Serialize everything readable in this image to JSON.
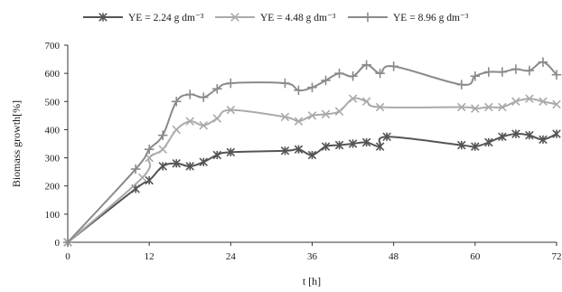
{
  "chart_data": {
    "type": "line",
    "xlabel": "t [h]",
    "ylabel": "Biomass growth[%]",
    "xlim": [
      0,
      72
    ],
    "ylim": [
      0,
      700
    ],
    "xticks": [
      0,
      12,
      24,
      36,
      48,
      60,
      72
    ],
    "yticks": [
      0,
      100,
      200,
      300,
      400,
      500,
      600,
      700
    ],
    "grid": false,
    "legend_position": "top-center",
    "series": [
      {
        "name": "YE = 2.24 g dm⁻³",
        "color": "#555555",
        "marker": "star",
        "x": [
          0,
          10,
          12,
          14,
          16,
          18,
          20,
          22,
          24,
          32,
          34,
          36,
          38,
          40,
          42,
          44,
          46,
          47,
          58,
          60,
          62,
          64,
          66,
          68,
          70,
          72
        ],
        "y": [
          0,
          190,
          220,
          270,
          280,
          270,
          285,
          310,
          320,
          325,
          330,
          310,
          340,
          345,
          350,
          355,
          340,
          375,
          345,
          340,
          355,
          375,
          385,
          380,
          365,
          385
        ]
      },
      {
        "name": "YE = 4.48 g dm⁻³",
        "color": "#aaaaaa",
        "marker": "x",
        "x": [
          0,
          11,
          12,
          14,
          16,
          18,
          20,
          22,
          24,
          32,
          34,
          36,
          38,
          40,
          42,
          44,
          46,
          58,
          60,
          62,
          64,
          66,
          68,
          70,
          72
        ],
        "y": [
          0,
          230,
          300,
          330,
          400,
          430,
          415,
          440,
          470,
          445,
          430,
          450,
          455,
          465,
          510,
          500,
          480,
          480,
          475,
          480,
          480,
          500,
          510,
          500,
          490
        ]
      },
      {
        "name": "YE = 8.96 g dm⁻³",
        "color": "#8a8a8a",
        "marker": "plus",
        "x": [
          0,
          10,
          12,
          14,
          16,
          18,
          20,
          22,
          24,
          32,
          34,
          36,
          38,
          40,
          42,
          44,
          46,
          48,
          58,
          60,
          62,
          64,
          66,
          68,
          70,
          72
        ],
        "y": [
          0,
          260,
          330,
          380,
          500,
          525,
          515,
          545,
          565,
          565,
          540,
          550,
          575,
          600,
          590,
          630,
          600,
          625,
          560,
          590,
          605,
          605,
          615,
          610,
          640,
          595
        ]
      }
    ]
  }
}
